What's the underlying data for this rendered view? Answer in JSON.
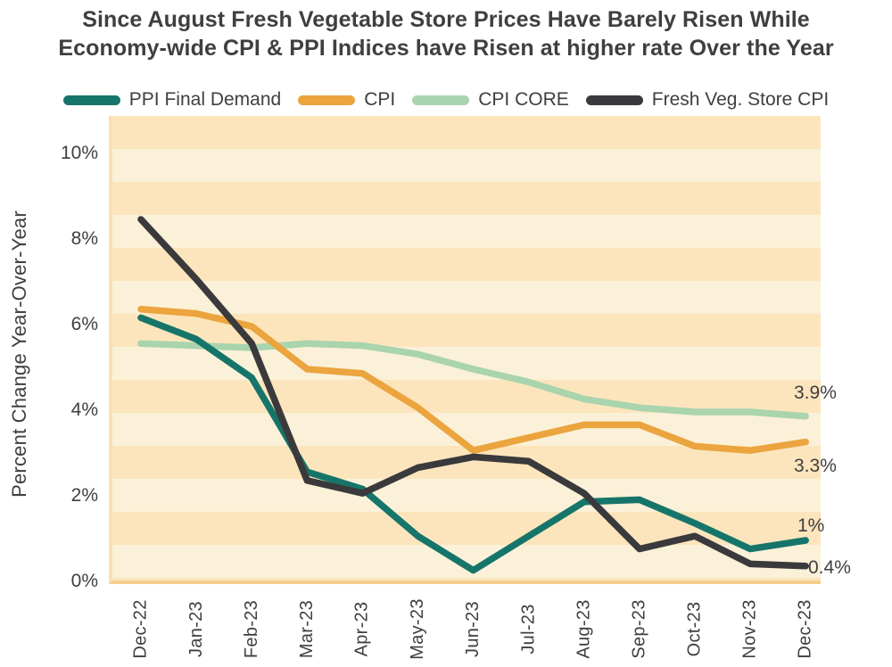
{
  "title": {
    "line1": "Since August Fresh Vegetable  Store Prices Have Barely Risen While",
    "line2": "Economy-wide CPI & PPI Indices have Risen at higher rate Over the Year"
  },
  "legend": {
    "items": [
      {
        "label": "PPI Final Demand",
        "color": "#16756a"
      },
      {
        "label": "CPI",
        "color": "#eba43e"
      },
      {
        "label": "CPI CORE",
        "color": "#a9d4ad"
      },
      {
        "label": "Fresh Veg. Store CPI",
        "color": "#3a393c"
      }
    ]
  },
  "chart_data": {
    "type": "line",
    "categories": [
      "Dec-22",
      "Jan-23",
      "Feb-23",
      "Mar-23",
      "Apr-23",
      "May-23",
      "Jun-23",
      "Jul-23",
      "Aug-23",
      "Sep-23",
      "Oct-23",
      "Nov-23",
      "Dec-23"
    ],
    "series": [
      {
        "name": "PPI Final Demand",
        "color": "#16756a",
        "values": [
          6.2,
          5.7,
          4.8,
          2.6,
          2.2,
          1.1,
          0.3,
          1.1,
          1.9,
          1.95,
          1.4,
          0.8,
          1.0
        ],
        "end_label": "1%"
      },
      {
        "name": "CPI",
        "color": "#eba43e",
        "values": [
          6.4,
          6.3,
          6.0,
          5.0,
          4.9,
          4.1,
          3.1,
          3.4,
          3.7,
          3.7,
          3.2,
          3.1,
          3.3
        ],
        "end_label": "3.3%"
      },
      {
        "name": "CPI CORE",
        "color": "#a9d4ad",
        "values": [
          5.6,
          5.55,
          5.5,
          5.6,
          5.55,
          5.35,
          5.0,
          4.7,
          4.3,
          4.1,
          4.0,
          4.0,
          3.9
        ],
        "end_label": "3.9%"
      },
      {
        "name": "Fresh Veg. Store CPI",
        "color": "#3a393c",
        "values": [
          8.5,
          7.1,
          5.6,
          2.4,
          2.1,
          2.7,
          2.95,
          2.85,
          2.1,
          0.8,
          1.1,
          0.45,
          0.4
        ],
        "end_label": "0.4%"
      }
    ],
    "ylabel": "Percent Change Year-Over-Year",
    "yticks": [
      {
        "label": "10%",
        "value": 10
      },
      {
        "label": "8%",
        "value": 8
      },
      {
        "label": "6%",
        "value": 6
      },
      {
        "label": "4%",
        "value": 4
      },
      {
        "label": "2%",
        "value": 2
      },
      {
        "label": "0%",
        "value": 0
      }
    ],
    "ylim": [
      0,
      10.9
    ],
    "grid": "horizontal-stripes",
    "legend_position": "top",
    "plot_colors": {
      "stripe_dark": "#fce5bc",
      "stripe_light": "#fbf1d8",
      "border_bottom": "#f6cf8f",
      "border_left": "#fbe0ae"
    }
  }
}
